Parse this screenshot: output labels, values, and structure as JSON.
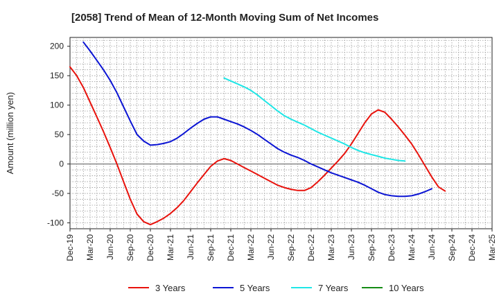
{
  "chart_data": {
    "type": "line",
    "title": "[2058]  Trend of Mean of 12-Month Moving Sum of Net Incomes",
    "ylabel": "Amount (million yen)",
    "xlabel": "",
    "x_labels": [
      "Dec-19",
      "Mar-20",
      "Jun-20",
      "Sep-20",
      "Dec-20",
      "Mar-21",
      "Jun-21",
      "Sep-21",
      "Dec-21",
      "Mar-22",
      "Jun-22",
      "Sep-22",
      "Dec-22",
      "Mar-23",
      "Jun-23",
      "Sep-23",
      "Dec-23",
      "Mar-24",
      "Jun-24",
      "Sep-24",
      "Dec-24",
      "Mar-25"
    ],
    "y_ticks": [
      200,
      150,
      100,
      50,
      0,
      -50,
      -100
    ],
    "ylim": [
      -110,
      215
    ],
    "grid": true,
    "legend_position": "bottom",
    "colors": {
      "3 Years": "#e8120c",
      "5 Years": "#0b14d4",
      "7 Years": "#1ee6e6",
      "10 Years": "#138b13"
    },
    "series": [
      {
        "name": "3 Years",
        "color": "#e8120c",
        "points": [
          [
            0,
            165
          ],
          [
            1,
            150
          ],
          [
            2,
            130
          ],
          [
            3,
            105
          ],
          [
            4,
            80
          ],
          [
            5,
            55
          ],
          [
            6,
            28
          ],
          [
            7,
            0
          ],
          [
            8,
            -30
          ],
          [
            9,
            -60
          ],
          [
            10,
            -85
          ],
          [
            11,
            -98
          ],
          [
            12,
            -103
          ],
          [
            13,
            -98
          ],
          [
            14,
            -92
          ],
          [
            15,
            -84
          ],
          [
            16,
            -74
          ],
          [
            17,
            -62
          ],
          [
            18,
            -47
          ],
          [
            19,
            -32
          ],
          [
            20,
            -18
          ],
          [
            21,
            -4
          ],
          [
            22,
            5
          ],
          [
            23,
            9
          ],
          [
            24,
            6
          ],
          [
            25,
            0
          ],
          [
            26,
            -6
          ],
          [
            27,
            -12
          ],
          [
            28,
            -18
          ],
          [
            29,
            -24
          ],
          [
            30,
            -30
          ],
          [
            31,
            -36
          ],
          [
            32,
            -40
          ],
          [
            33,
            -43
          ],
          [
            34,
            -45
          ],
          [
            35,
            -45
          ],
          [
            36,
            -40
          ],
          [
            37,
            -30
          ],
          [
            38,
            -19
          ],
          [
            39,
            -7
          ],
          [
            40,
            5
          ],
          [
            41,
            18
          ],
          [
            42,
            34
          ],
          [
            43,
            52
          ],
          [
            44,
            70
          ],
          [
            45,
            85
          ],
          [
            46,
            92
          ],
          [
            47,
            88
          ],
          [
            48,
            76
          ],
          [
            49,
            63
          ],
          [
            50,
            49
          ],
          [
            51,
            34
          ],
          [
            52,
            16
          ],
          [
            53,
            -3
          ],
          [
            54,
            -22
          ],
          [
            55,
            -39
          ],
          [
            56,
            -46
          ]
        ]
      },
      {
        "name": "5 Years",
        "color": "#0b14d4",
        "points": [
          [
            2,
            207
          ],
          [
            3,
            192
          ],
          [
            4,
            176
          ],
          [
            5,
            160
          ],
          [
            6,
            142
          ],
          [
            7,
            121
          ],
          [
            8,
            97
          ],
          [
            9,
            73
          ],
          [
            10,
            50
          ],
          [
            11,
            39
          ],
          [
            12,
            32
          ],
          [
            13,
            33
          ],
          [
            14,
            35
          ],
          [
            15,
            38
          ],
          [
            16,
            44
          ],
          [
            17,
            52
          ],
          [
            18,
            61
          ],
          [
            19,
            69
          ],
          [
            20,
            76
          ],
          [
            21,
            80
          ],
          [
            22,
            80
          ],
          [
            23,
            76
          ],
          [
            24,
            72
          ],
          [
            25,
            68
          ],
          [
            26,
            63
          ],
          [
            27,
            57
          ],
          [
            28,
            50
          ],
          [
            29,
            42
          ],
          [
            30,
            34
          ],
          [
            31,
            26
          ],
          [
            32,
            20
          ],
          [
            33,
            15
          ],
          [
            34,
            11
          ],
          [
            35,
            6
          ],
          [
            36,
            0
          ],
          [
            37,
            -5
          ],
          [
            38,
            -10
          ],
          [
            39,
            -15
          ],
          [
            40,
            -19
          ],
          [
            41,
            -23
          ],
          [
            42,
            -27
          ],
          [
            43,
            -31
          ],
          [
            44,
            -36
          ],
          [
            45,
            -42
          ],
          [
            46,
            -48
          ],
          [
            47,
            -52
          ],
          [
            48,
            -54
          ],
          [
            49,
            -55
          ],
          [
            50,
            -55
          ],
          [
            51,
            -54
          ],
          [
            52,
            -51
          ],
          [
            53,
            -47
          ],
          [
            54,
            -42
          ]
        ]
      },
      {
        "name": "7 Years",
        "color": "#1ee6e6",
        "points": [
          [
            23,
            146
          ],
          [
            24,
            141
          ],
          [
            25,
            136
          ],
          [
            26,
            131
          ],
          [
            27,
            125
          ],
          [
            28,
            117
          ],
          [
            29,
            108
          ],
          [
            30,
            99
          ],
          [
            31,
            90
          ],
          [
            32,
            82
          ],
          [
            33,
            76
          ],
          [
            34,
            71
          ],
          [
            35,
            66
          ],
          [
            36,
            60
          ],
          [
            37,
            54
          ],
          [
            38,
            49
          ],
          [
            39,
            44
          ],
          [
            40,
            39
          ],
          [
            41,
            34
          ],
          [
            42,
            28
          ],
          [
            43,
            23
          ],
          [
            44,
            19
          ],
          [
            45,
            16
          ],
          [
            46,
            13
          ],
          [
            47,
            10
          ],
          [
            48,
            8
          ],
          [
            49,
            6
          ],
          [
            50,
            5
          ]
        ]
      },
      {
        "name": "10 Years",
        "color": "#138b13",
        "points": []
      }
    ]
  }
}
